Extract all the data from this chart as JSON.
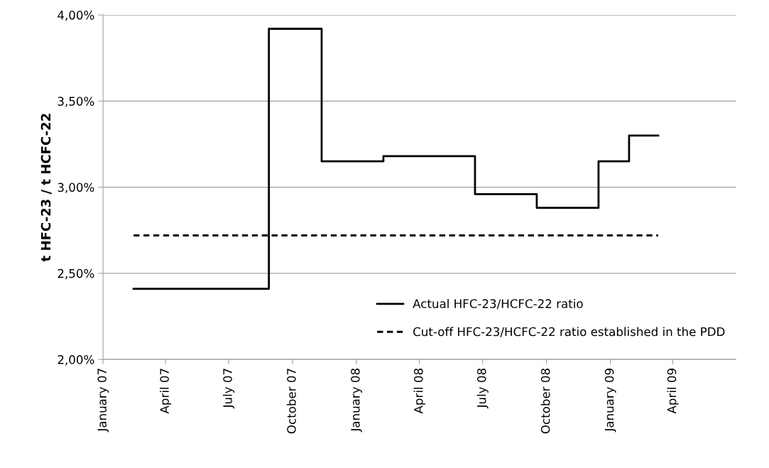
{
  "chart_data": {
    "type": "step",
    "ylabel": "t HFC-23 / t HCFC-22",
    "xlim": [
      "2007-01-01",
      "2009-07-01"
    ],
    "xticks": [
      {
        "value": "2007-01-01",
        "label": "January 07"
      },
      {
        "value": "2007-04-01",
        "label": "April 07"
      },
      {
        "value": "2007-07-01",
        "label": "July 07"
      },
      {
        "value": "2007-10-01",
        "label": "October 07"
      },
      {
        "value": "2008-01-01",
        "label": "January 08"
      },
      {
        "value": "2008-04-01",
        "label": "April 08"
      },
      {
        "value": "2008-07-01",
        "label": "July 08"
      },
      {
        "value": "2008-10-01",
        "label": "October 08"
      },
      {
        "value": "2009-01-01",
        "label": "January 09"
      },
      {
        "value": "2009-04-01",
        "label": "April 09"
      }
    ],
    "ylim": [
      2.0,
      4.0
    ],
    "yticks": [
      {
        "value": 2.0,
        "label": "2,00%"
      },
      {
        "value": 2.5,
        "label": "2,50%"
      },
      {
        "value": 3.0,
        "label": "3,00%"
      },
      {
        "value": 3.5,
        "label": "3,50%"
      },
      {
        "value": 4.0,
        "label": "4,00%"
      }
    ],
    "grid": "y",
    "legend": "bottom right",
    "series": [
      {
        "name": "Actual HFC-23/HCFC-22 ratio",
        "color": "#000000",
        "line_style": "solid",
        "x": [
          "2007-02-14",
          "2007-08-28",
          "2007-11-12",
          "2008-02-09",
          "2008-06-20",
          "2008-09-17",
          "2008-12-15",
          "2009-01-28",
          "2009-03-11"
        ],
        "values": [
          2.41,
          3.92,
          3.15,
          3.18,
          2.96,
          2.88,
          3.15,
          3.3,
          3.3
        ]
      },
      {
        "name": "Cut-off HFC-23/HCFC-22 ratio established in the PDD",
        "type": "line",
        "color": "#000000",
        "line_style": "dashed",
        "x": [
          "2007-02-14",
          "2009-03-11"
        ],
        "values": [
          2.72,
          2.72
        ]
      }
    ]
  }
}
